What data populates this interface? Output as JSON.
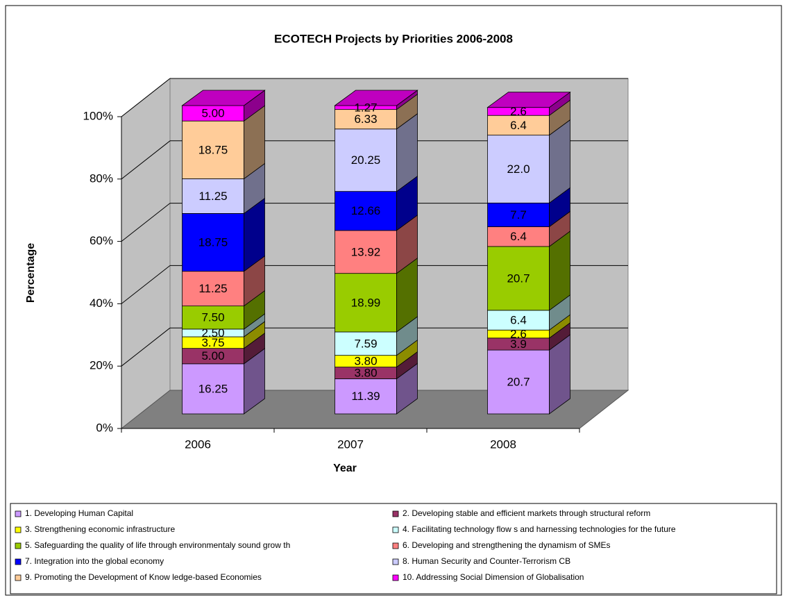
{
  "chart_data": {
    "type": "bar3d_stacked",
    "title": "ECOTECH Projects by Priorities 2006-2008",
    "x_label": "Year",
    "y_label": "Percentage",
    "categories": [
      "2006",
      "2007",
      "2008"
    ],
    "ylim": [
      0,
      100
    ],
    "yticks": [
      {
        "value": 0,
        "label": "0%"
      },
      {
        "value": 20,
        "label": "20%"
      },
      {
        "value": 40,
        "label": "40%"
      },
      {
        "value": 60,
        "label": "60%"
      },
      {
        "value": 80,
        "label": "80%"
      },
      {
        "value": 100,
        "label": "100%"
      }
    ],
    "grid": true,
    "legend": "bottom",
    "series": [
      {
        "name": "1. Developing Human Capital",
        "color": "#cc99ff",
        "values": [
          16.25,
          11.39,
          20.7
        ],
        "value_labels": [
          "16.25",
          "11.39",
          "20.7"
        ]
      },
      {
        "name": "2. Developing stable and efficient markets through structural reform",
        "color": "#993366",
        "values": [
          5.0,
          3.8,
          3.9
        ],
        "value_labels": [
          "5.00",
          "3.80",
          "3.9"
        ]
      },
      {
        "name": "3. Strengthening economic infrastructure",
        "color": "#ffff00",
        "values": [
          3.75,
          3.8,
          2.6
        ],
        "value_labels": [
          "3.75",
          "3.80",
          "2.6"
        ]
      },
      {
        "name": "4. Facilitating technology flow s and harnessing technologies for the future",
        "color": "#ccffff",
        "values": [
          2.5,
          7.59,
          6.4
        ],
        "value_labels": [
          "2.50",
          "7.59",
          "6.4"
        ]
      },
      {
        "name": "5. Safeguarding the quality of life through environmentaly sound grow th",
        "color": "#99cc00",
        "values": [
          7.5,
          18.99,
          20.7
        ],
        "value_labels": [
          "7.50",
          "18.99",
          "20.7"
        ]
      },
      {
        "name": "6. Developing and strengthening the dynamism of SMEs",
        "color": "#ff8080",
        "values": [
          11.25,
          13.92,
          6.4
        ],
        "value_labels": [
          "11.25",
          "13.92",
          "6.4"
        ]
      },
      {
        "name": "7. Integration into the global economy",
        "color": "#0000ff",
        "values": [
          18.75,
          12.66,
          7.7
        ],
        "value_labels": [
          "18.75",
          "12.66",
          "7.7"
        ]
      },
      {
        "name": "8. Human Security and Counter-Terrorism CB",
        "color": "#ccccff",
        "values": [
          11.25,
          20.25,
          22.0
        ],
        "value_labels": [
          "11.25",
          "20.25",
          "22.0"
        ]
      },
      {
        "name": "9. Promoting the Development of Know ledge-based Economies",
        "color": "#ffcc99",
        "values": [
          18.75,
          6.33,
          6.4
        ],
        "value_labels": [
          "18.75",
          "6.33",
          "6.4"
        ]
      },
      {
        "name": "10. Addressing Social Dimension of Globalisation",
        "color": "#ff00ff",
        "values": [
          5.0,
          1.27,
          2.6
        ],
        "value_labels": [
          "5.00",
          "1.27",
          "2.6"
        ]
      }
    ]
  }
}
